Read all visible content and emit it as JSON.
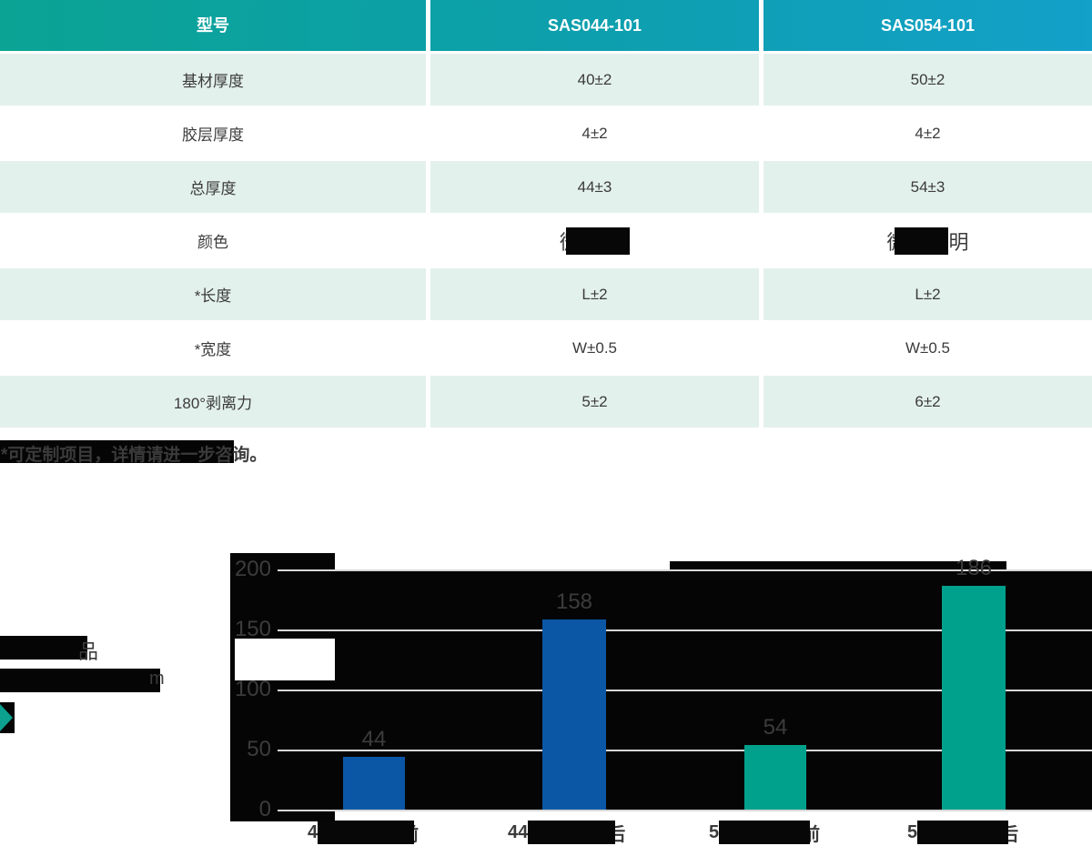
{
  "colors": {
    "header_gradient_left": "#0ba394",
    "header_gradient_right": "#13a0c9",
    "row_mint": "#e3f1ed",
    "text_dark": "#3b3b3b",
    "bar_blue": "#0b57a6",
    "bar_teal": "#00a18c",
    "gridline": "#d8d8d8",
    "redaction_black": "#070707",
    "play_icon_teal": "#0ba18e"
  },
  "table": {
    "header": [
      "型号",
      "SAS044-101",
      "SAS054-101"
    ],
    "rows": [
      {
        "label": "基材厚度",
        "v1": "40±2",
        "v2": "50±2"
      },
      {
        "label": "胶层厚度",
        "v1": "4±2",
        "v2": "4±2"
      },
      {
        "label": "总厚度",
        "v1": "44±3",
        "v2": "54±3"
      },
      {
        "label": "颜色",
        "v1_visible": "微",
        "v2_visible_start": "微",
        "v2_visible_end": "明"
      },
      {
        "label": "*长度",
        "v1": "L±2",
        "v2": "L±2"
      },
      {
        "label": "*宽度",
        "v1": "W±0.5",
        "v2": "W±0.5"
      },
      {
        "label": "180°剥离力",
        "v1": "5±2",
        "v2": "6±2"
      }
    ]
  },
  "note": "*可定制项目，详情请进一步咨询。",
  "left_panel": {
    "line1_visible_char": "品",
    "line2_visible_char": "m"
  },
  "chart_data": {
    "type": "bar",
    "values": [
      44,
      158,
      54,
      186
    ],
    "categories": [
      {
        "visible_prefix": "4",
        "visible_suffix": "前"
      },
      {
        "visible_prefix": "44",
        "visible_suffix": "后"
      },
      {
        "visible_prefix": "5",
        "visible_suffix": "前"
      },
      {
        "visible_prefix": "5",
        "visible_suffix": "后"
      }
    ],
    "series_colors": [
      "#0b57a6",
      "#0b57a6",
      "#00a18c",
      "#00a18c"
    ],
    "yticks": [
      200,
      150,
      100,
      50,
      0
    ],
    "ylim": [
      0,
      200
    ],
    "grid": true,
    "legend": "none"
  }
}
